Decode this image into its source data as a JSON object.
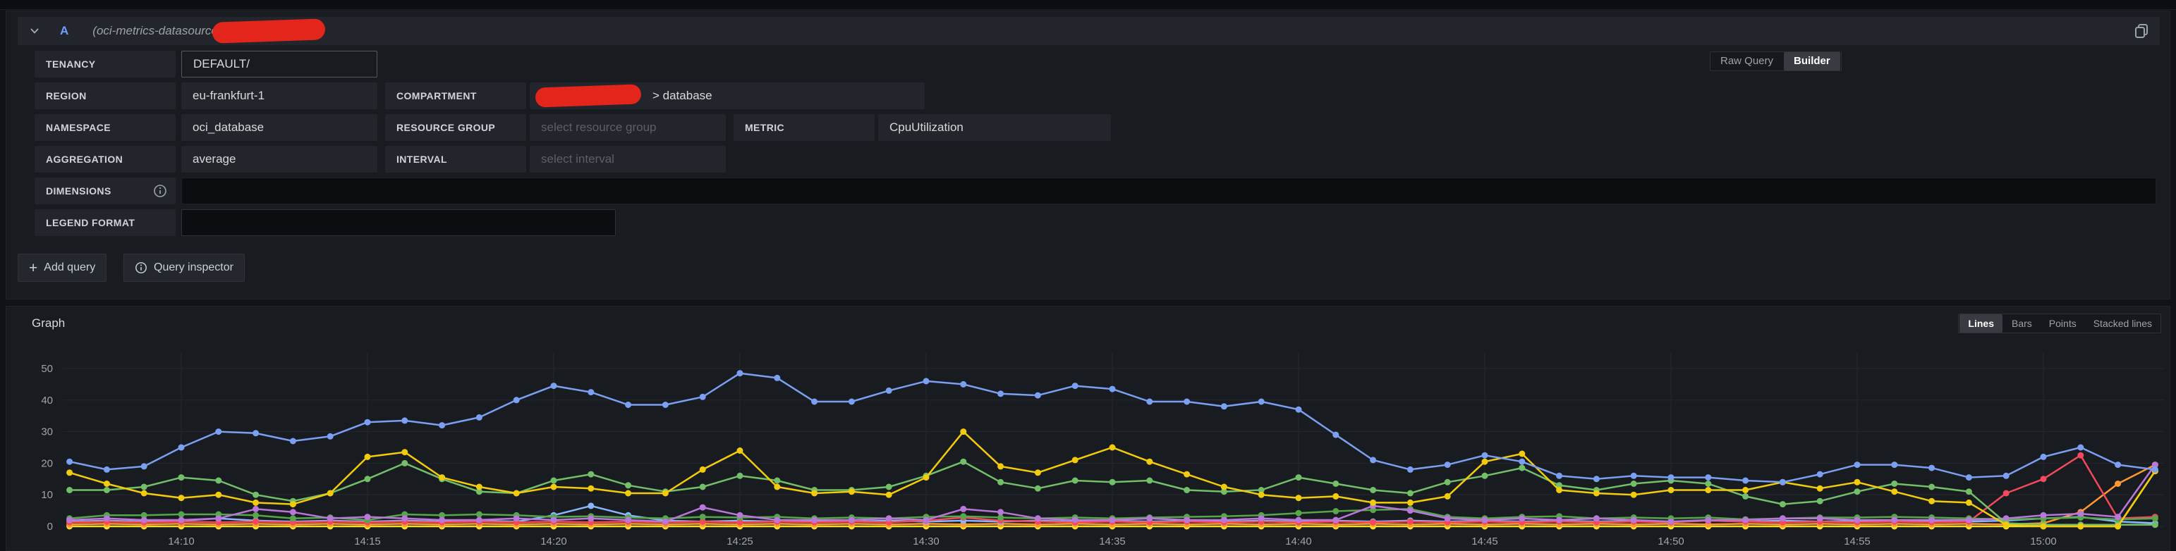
{
  "colors": {
    "accent_blue": "#6e9fff",
    "redaction_red": "#e3251c",
    "panel_bg": "#181b1f",
    "box_bg": "#22252b"
  },
  "query_editor": {
    "header": {
      "ref_id": "A",
      "datasource": "(oci-metrics-datasource"
    },
    "mode_toggle": {
      "options": [
        "Raw Query",
        "Builder"
      ],
      "selected": "Builder"
    },
    "fields": {
      "tenancy": {
        "label": "TENANCY",
        "value": "DEFAULT/"
      },
      "region": {
        "label": "REGION",
        "value": "eu-frankfurt-1"
      },
      "compartment": {
        "label": "COMPARTMENT",
        "value_suffix": "> database"
      },
      "namespace": {
        "label": "NAMESPACE",
        "value": "oci_database"
      },
      "resource_group": {
        "label": "RESOURCE GROUP",
        "placeholder": "select resource group"
      },
      "metric": {
        "label": "METRIC",
        "value": "CpuUtilization"
      },
      "aggregation": {
        "label": "AGGREGATION",
        "value": "average"
      },
      "interval": {
        "label": "INTERVAL",
        "placeholder": "select interval"
      },
      "dimensions": {
        "label": "DIMENSIONS"
      },
      "legend_format": {
        "label": "LEGEND FORMAT",
        "value": ""
      }
    },
    "actions": {
      "add_query": "Add query",
      "query_inspector": "Query inspector"
    }
  },
  "graph_panel": {
    "title": "Graph",
    "draw_modes": {
      "options": [
        "Lines",
        "Bars",
        "Points",
        "Stacked lines"
      ],
      "selected": "Lines"
    }
  },
  "chart_data": {
    "type": "line",
    "title": "Graph",
    "ylim": [
      0,
      55
    ],
    "yticks": [
      0,
      10,
      20,
      30,
      40,
      50
    ],
    "xticks": [
      "14:10",
      "14:15",
      "14:20",
      "14:25",
      "14:30",
      "14:35",
      "14:40",
      "14:45",
      "14:50",
      "14:55",
      "15:00"
    ],
    "grid": true,
    "legend": "none",
    "x": [
      "14:07",
      "14:08",
      "14:09",
      "14:10",
      "14:11",
      "14:12",
      "14:13",
      "14:14",
      "14:15",
      "14:16",
      "14:17",
      "14:18",
      "14:19",
      "14:20",
      "14:21",
      "14:22",
      "14:23",
      "14:24",
      "14:25",
      "14:26",
      "14:27",
      "14:28",
      "14:29",
      "14:30",
      "14:31",
      "14:32",
      "14:33",
      "14:34",
      "14:35",
      "14:36",
      "14:37",
      "14:38",
      "14:39",
      "14:40",
      "14:41",
      "14:42",
      "14:43",
      "14:44",
      "14:45",
      "14:46",
      "14:47",
      "14:48",
      "14:49",
      "14:50",
      "14:51",
      "14:52",
      "14:53",
      "14:54",
      "14:55",
      "14:56",
      "14:57",
      "14:58",
      "14:59",
      "15:00",
      "15:01",
      "15:02",
      "15:03"
    ],
    "series": [
      {
        "color": "#FADE2A",
        "values": [
          0,
          0,
          0,
          0,
          0,
          0,
          0,
          0,
          0,
          0,
          0,
          0,
          0,
          0,
          0,
          0,
          0,
          0,
          0,
          0,
          0,
          0,
          0,
          0,
          0,
          0,
          0,
          0,
          0,
          0,
          0,
          0,
          0,
          0,
          0,
          0,
          0,
          0,
          0,
          0,
          0,
          0,
          0,
          0,
          0,
          0,
          0,
          0,
          0,
          0,
          0,
          0,
          0,
          0,
          0,
          0,
          17.5
        ]
      },
      {
        "color": "#FF9830",
        "values": [
          0.6,
          0.8,
          0.6,
          0.8,
          0.6,
          0.8,
          0.6,
          0.8,
          0.6,
          0.8,
          0.6,
          0.8,
          0.6,
          0.8,
          0.6,
          0.8,
          0.6,
          0.8,
          0.6,
          0.8,
          0.6,
          0.8,
          0.6,
          0.8,
          0.6,
          0.8,
          0.6,
          0.8,
          0.6,
          0.8,
          0.6,
          0.8,
          0.6,
          0.8,
          0.6,
          0.8,
          0.6,
          0.8,
          0.6,
          0.8,
          0.6,
          0.8,
          0.6,
          0.8,
          0.6,
          0.8,
          0.6,
          0.8,
          0.6,
          0.8,
          0.6,
          0.8,
          0.6,
          1,
          4.5,
          13.5,
          19.5
        ]
      },
      {
        "color": "#8AB8FF",
        "values": [
          1.5,
          1.8,
          1.5,
          1.8,
          2.5,
          1.8,
          1.5,
          1.8,
          1.5,
          1.8,
          1.5,
          1.8,
          1.5,
          3.5,
          6.5,
          3.5,
          1.8,
          1.5,
          1.8,
          1.5,
          1.8,
          1.5,
          1.8,
          1.5,
          1.8,
          1.5,
          1.8,
          1.5,
          1.8,
          1.5,
          1.8,
          1.5,
          1.8,
          1.5,
          1.8,
          1.5,
          1.8,
          1.5,
          1.8,
          1.5,
          1.8,
          1.5,
          1.8,
          1.5,
          1.8,
          1.5,
          1.8,
          1.5,
          1.8,
          1.5,
          1.8,
          1.5,
          1.8,
          2.5,
          3,
          1.5,
          1
        ]
      },
      {
        "color": "#F2495C",
        "values": [
          1.3,
          1.5,
          1.3,
          1.5,
          1.3,
          1.5,
          1.3,
          1.5,
          1.3,
          1.5,
          1.3,
          1.5,
          1.3,
          1.5,
          1.3,
          1.5,
          1.3,
          1.5,
          1.3,
          1.5,
          1.3,
          1.5,
          1.3,
          1.8,
          2.8,
          1.8,
          1.5,
          1.3,
          1.5,
          1.3,
          1.5,
          1.3,
          1.5,
          1.3,
          1.5,
          1.3,
          1.5,
          1.3,
          1.5,
          1.3,
          1.5,
          1.3,
          1.5,
          1.3,
          1.8,
          1.5,
          1.3,
          1.5,
          1.3,
          1.5,
          1.3,
          1.5,
          10.5,
          15,
          22.5,
          2.5,
          3
        ]
      },
      {
        "color": "#56A64B",
        "values": [
          2.5,
          3.5,
          3.5,
          3.8,
          3.8,
          3.5,
          2.5,
          2.8,
          2,
          3.8,
          3.5,
          3.8,
          3.5,
          3,
          3.2,
          2.8,
          2.5,
          3,
          2.8,
          3,
          2.5,
          2.8,
          2.5,
          3,
          3.2,
          2.8,
          2.5,
          2.8,
          2.5,
          2.8,
          3,
          3.2,
          3.5,
          4.2,
          4.8,
          5.2,
          5.5,
          3,
          2.5,
          3,
          3.2,
          2.5,
          2.8,
          2.5,
          2.8,
          2.2,
          2.5,
          2.8,
          2.8,
          3,
          2.8,
          2.5,
          2.2,
          2.5,
          2.8,
          2.2,
          2.5
        ]
      },
      {
        "color": "#B877D9",
        "values": [
          2,
          2.5,
          2,
          2,
          2.5,
          5.5,
          4.5,
          2.5,
          3,
          2.5,
          2,
          2,
          2.5,
          2,
          2.5,
          2,
          1.5,
          6,
          3.5,
          2,
          2,
          2,
          2.5,
          2,
          5.5,
          4.5,
          2.5,
          2,
          2,
          2.5,
          2,
          2,
          2.5,
          2,
          2,
          6.5,
          5,
          2.5,
          2,
          2.5,
          2,
          2.5,
          2,
          1.5,
          2,
          2,
          2.5,
          2.5,
          2,
          2,
          2,
          2,
          2.5,
          3.5,
          4,
          3,
          19.5
        ]
      },
      {
        "color": "#73BF69",
        "values": [
          11.5,
          11.5,
          12.5,
          15.5,
          14.5,
          10,
          8,
          10.5,
          15,
          20,
          15,
          11,
          10.5,
          14.5,
          16.5,
          13,
          11,
          12.5,
          16,
          14.5,
          11.5,
          11.5,
          12.5,
          16,
          20.5,
          14,
          12,
          14.5,
          14,
          14.5,
          11.5,
          11,
          11.5,
          15.5,
          13.5,
          11.5,
          10.5,
          14,
          16,
          18.5,
          13,
          11.5,
          13.5,
          14.5,
          13.5,
          9.5,
          7,
          8,
          11,
          13.5,
          12.5,
          11,
          1,
          0.5,
          0.5,
          0.5,
          0.5
        ]
      },
      {
        "color": "#F2CC0C",
        "values": [
          17,
          13.5,
          10.5,
          9,
          10,
          7.5,
          7,
          10.5,
          22,
          23.5,
          15.5,
          12.5,
          10.5,
          12.5,
          12,
          10.5,
          10.5,
          18,
          24,
          12.5,
          10.5,
          11,
          10,
          15.5,
          30,
          19,
          17,
          21,
          25,
          20.5,
          16.5,
          12.5,
          10,
          9,
          9.5,
          7.5,
          7.5,
          9.5,
          20.5,
          23,
          11.5,
          10.5,
          10,
          11.5,
          11.5,
          11.5,
          14,
          12,
          14,
          11,
          8,
          7.5,
          0.5,
          0,
          0,
          0,
          17.5
        ]
      },
      {
        "color": "#7B9FF2",
        "values": [
          20.5,
          18,
          19,
          25,
          30,
          29.5,
          27,
          28.5,
          33,
          33.5,
          32,
          34.5,
          40,
          44.5,
          42.5,
          38.5,
          38.5,
          41,
          48.5,
          47,
          39.5,
          39.5,
          43,
          46,
          45,
          42,
          41.5,
          44.5,
          43.5,
          39.5,
          39.5,
          38,
          39.5,
          37,
          29,
          21,
          18,
          19.5,
          22.5,
          20.5,
          16,
          15,
          16,
          15.5,
          15.5,
          14.5,
          14,
          16.5,
          19.5,
          19.5,
          18.5,
          15.5,
          16,
          22,
          25,
          19.5,
          18
        ]
      }
    ]
  }
}
